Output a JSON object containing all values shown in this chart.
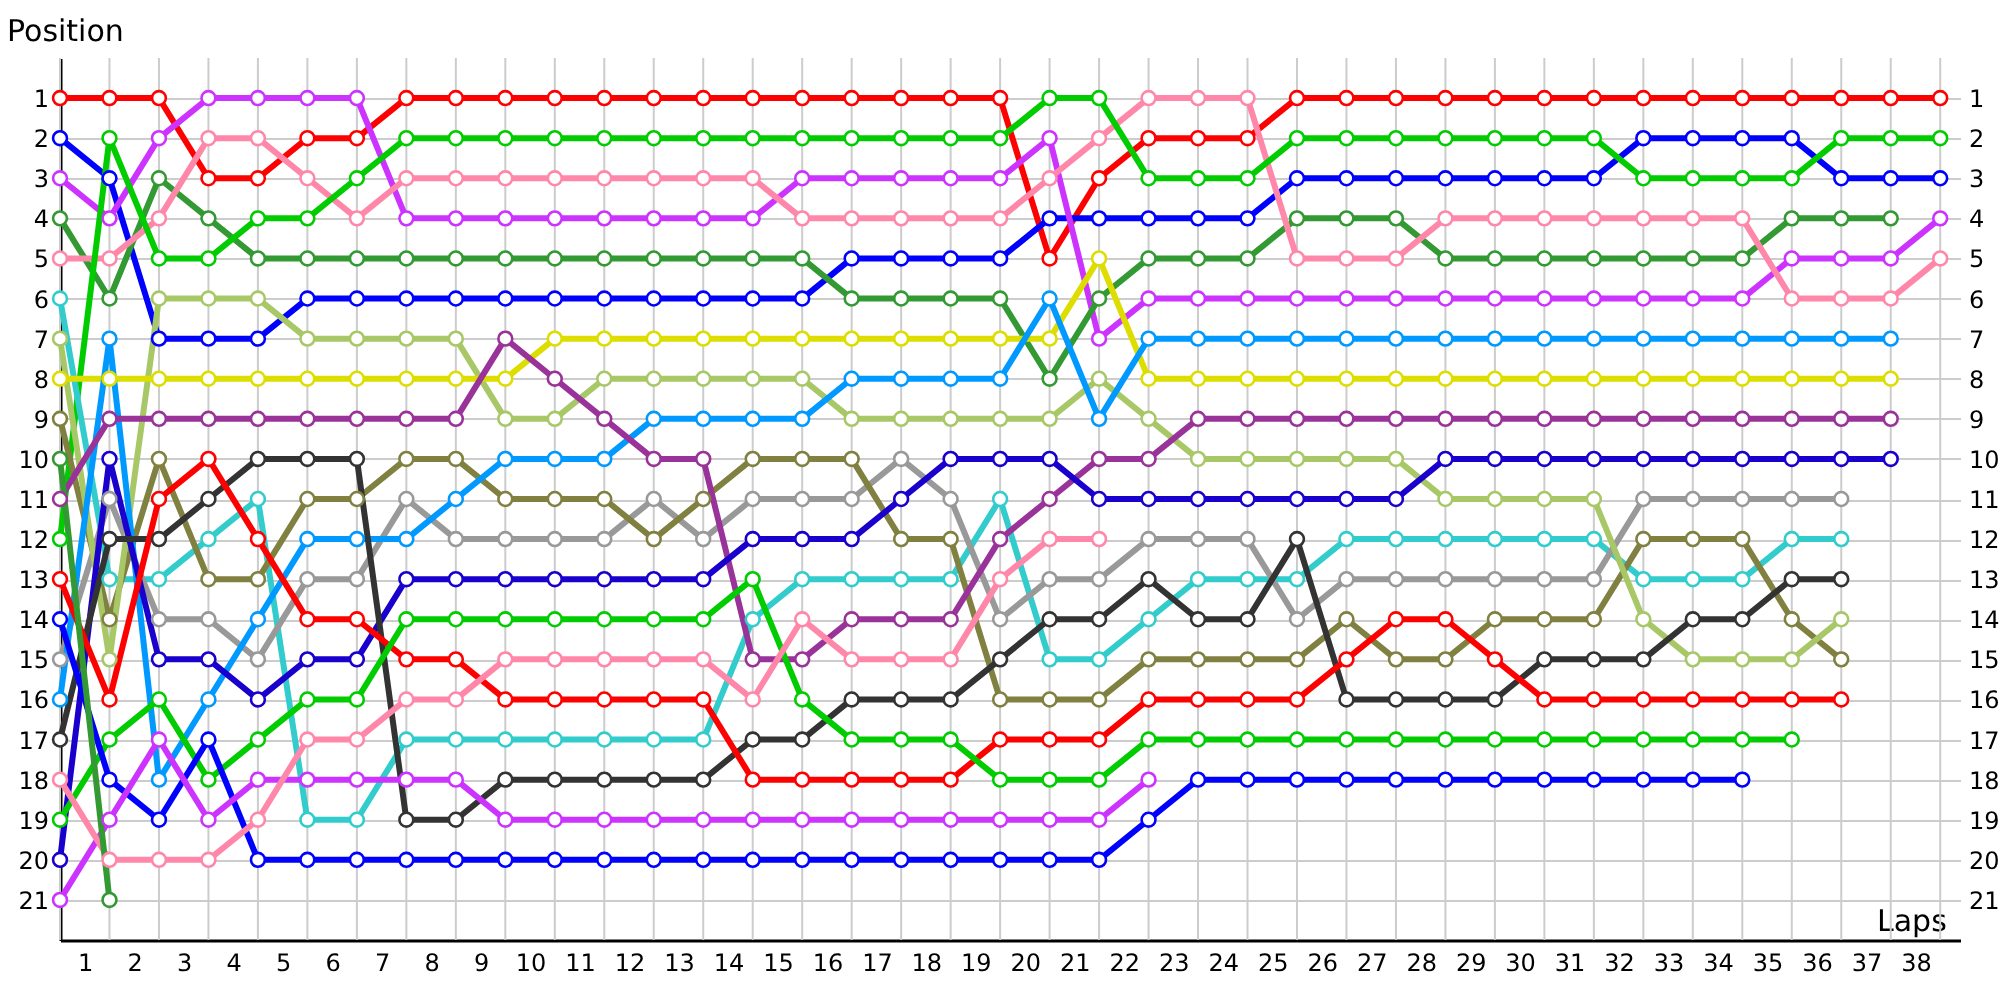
{
  "chart_data": {
    "type": "line",
    "xlabel": "Laps",
    "ylabel": "Position",
    "grid": true,
    "marker": "circle",
    "line_style": "solid",
    "x": [
      0,
      1,
      2,
      3,
      4,
      5,
      6,
      7,
      8,
      9,
      10,
      11,
      12,
      13,
      14,
      15,
      16,
      17,
      18,
      19,
      20,
      21,
      22,
      23,
      24,
      25,
      26,
      27,
      28,
      29,
      30,
      31,
      32,
      33,
      34,
      35,
      36,
      37,
      38
    ],
    "xlim": [
      0,
      38.4
    ],
    "xticks": [
      {
        "value": 0,
        "label": null
      },
      {
        "value": 0.5,
        "label": "1"
      },
      {
        "value": 1,
        "label": null
      },
      {
        "value": 1.5,
        "label": "2"
      },
      {
        "value": 2,
        "label": null
      },
      {
        "value": 2.5,
        "label": "3"
      },
      {
        "value": 3,
        "label": null
      },
      {
        "value": 3.5,
        "label": "4"
      },
      {
        "value": 4,
        "label": null
      },
      {
        "value": 4.5,
        "label": "5"
      },
      {
        "value": 5,
        "label": null
      },
      {
        "value": 5.5,
        "label": "6"
      },
      {
        "value": 6,
        "label": null
      },
      {
        "value": 6.5,
        "label": "7"
      },
      {
        "value": 7,
        "label": null
      },
      {
        "value": 7.5,
        "label": "8"
      },
      {
        "value": 8,
        "label": null
      },
      {
        "value": 8.5,
        "label": "9"
      },
      {
        "value": 9,
        "label": null
      },
      {
        "value": 9.5,
        "label": "10"
      },
      {
        "value": 10,
        "label": null
      },
      {
        "value": 10.5,
        "label": "11"
      },
      {
        "value": 11,
        "label": null
      },
      {
        "value": 11.5,
        "label": "12"
      },
      {
        "value": 12,
        "label": null
      },
      {
        "value": 12.5,
        "label": "13"
      },
      {
        "value": 13,
        "label": null
      },
      {
        "value": 13.5,
        "label": "14"
      },
      {
        "value": 14,
        "label": null
      },
      {
        "value": 14.5,
        "label": "15"
      },
      {
        "value": 15,
        "label": null
      },
      {
        "value": 15.5,
        "label": "16"
      },
      {
        "value": 16,
        "label": null
      },
      {
        "value": 16.5,
        "label": "17"
      },
      {
        "value": 17,
        "label": null
      },
      {
        "value": 17.5,
        "label": "18"
      },
      {
        "value": 18,
        "label": null
      },
      {
        "value": 18.5,
        "label": "19"
      },
      {
        "value": 19,
        "label": null
      },
      {
        "value": 19.5,
        "label": "20"
      },
      {
        "value": 20,
        "label": null
      },
      {
        "value": 20.5,
        "label": "21"
      },
      {
        "value": 21,
        "label": null
      },
      {
        "value": 21.5,
        "label": "22"
      },
      {
        "value": 22,
        "label": null
      },
      {
        "value": 22.5,
        "label": "23"
      },
      {
        "value": 23,
        "label": null
      },
      {
        "value": 23.5,
        "label": "24"
      },
      {
        "value": 24,
        "label": null
      },
      {
        "value": 24.5,
        "label": "25"
      },
      {
        "value": 25,
        "label": null
      },
      {
        "value": 25.5,
        "label": "26"
      },
      {
        "value": 26,
        "label": null
      },
      {
        "value": 26.5,
        "label": "27"
      },
      {
        "value": 27,
        "label": null
      },
      {
        "value": 27.5,
        "label": "28"
      },
      {
        "value": 28,
        "label": null
      },
      {
        "value": 28.5,
        "label": "29"
      },
      {
        "value": 29,
        "label": null
      },
      {
        "value": 29.5,
        "label": "30"
      },
      {
        "value": 30,
        "label": null
      },
      {
        "value": 30.5,
        "label": "31"
      },
      {
        "value": 31,
        "label": null
      },
      {
        "value": 31.5,
        "label": "32"
      },
      {
        "value": 32,
        "label": null
      },
      {
        "value": 32.5,
        "label": "33"
      },
      {
        "value": 33,
        "label": null
      },
      {
        "value": 33.5,
        "label": "34"
      },
      {
        "value": 34,
        "label": null
      },
      {
        "value": 34.5,
        "label": "35"
      },
      {
        "value": 35,
        "label": null
      },
      {
        "value": 35.5,
        "label": "36"
      },
      {
        "value": 36,
        "label": null
      },
      {
        "value": 36.5,
        "label": "37"
      },
      {
        "value": 37,
        "label": null
      },
      {
        "value": 37.5,
        "label": "38"
      },
      {
        "value": 38,
        "label": null
      }
    ],
    "ylim": [
      22,
      0
    ],
    "yticks": [
      1,
      2,
      3,
      4,
      5,
      6,
      7,
      8,
      9,
      10,
      11,
      12,
      13,
      14,
      15,
      16,
      17,
      18,
      19,
      20,
      21
    ],
    "y2lim": [
      22,
      0
    ],
    "y2ticks": [
      1,
      2,
      3,
      4,
      5,
      6,
      7,
      8,
      9,
      10,
      11,
      12,
      13,
      14,
      15,
      16,
      17,
      18,
      19,
      20,
      21
    ],
    "series": [
      {
        "color": "#ff0000",
        "values": [
          1,
          1,
          1,
          3,
          3,
          2,
          2,
          1,
          1,
          1,
          1,
          1,
          1,
          1,
          1,
          1,
          1,
          1,
          1,
          1,
          5,
          3,
          2,
          2,
          2,
          1,
          1,
          1,
          1,
          1,
          1,
          1,
          1,
          1,
          1,
          1,
          1,
          1,
          1
        ]
      },
      {
        "color": "#0000ff",
        "values": [
          2,
          3,
          7,
          7,
          7,
          6,
          6,
          6,
          6,
          6,
          6,
          6,
          6,
          6,
          6,
          6,
          5,
          5,
          5,
          5,
          4,
          4,
          4,
          4,
          4,
          3,
          3,
          3,
          3,
          3,
          3,
          3,
          2,
          2,
          2,
          2,
          3,
          3,
          3
        ]
      },
      {
        "color": "#cc33ff",
        "values": [
          3,
          4,
          2,
          1,
          1,
          1,
          1,
          4,
          4,
          4,
          4,
          4,
          4,
          4,
          4,
          3,
          3,
          3,
          3,
          3,
          2,
          7,
          6,
          6,
          6,
          6,
          6,
          6,
          6,
          6,
          6,
          6,
          6,
          6,
          6,
          5,
          5,
          5,
          4
        ]
      },
      {
        "color": "#339933",
        "values": [
          4,
          6,
          3,
          4,
          5,
          5,
          5,
          5,
          5,
          5,
          5,
          5,
          5,
          5,
          5,
          5,
          6,
          6,
          6,
          6,
          8,
          6,
          5,
          5,
          5,
          4,
          4,
          4,
          5,
          5,
          5,
          5,
          5,
          5,
          5,
          4,
          4,
          4,
          null
        ]
      },
      {
        "color": "#ff88aa",
        "values": [
          5,
          5,
          4,
          2,
          2,
          3,
          4,
          3,
          3,
          3,
          3,
          3,
          3,
          3,
          3,
          4,
          4,
          4,
          4,
          4,
          3,
          2,
          1,
          1,
          1,
          5,
          5,
          5,
          4,
          4,
          4,
          4,
          4,
          4,
          4,
          6,
          6,
          6,
          5
        ]
      },
      {
        "color": "#00cc00",
        "values": [
          12,
          2,
          5,
          5,
          4,
          4,
          3,
          2,
          2,
          2,
          2,
          2,
          2,
          2,
          2,
          2,
          2,
          2,
          2,
          2,
          1,
          1,
          3,
          3,
          3,
          2,
          2,
          2,
          2,
          2,
          2,
          2,
          3,
          3,
          3,
          3,
          2,
          2,
          2
        ]
      },
      {
        "color": "#33cccc",
        "values": [
          6,
          13,
          13,
          12,
          11,
          19,
          19,
          17,
          17,
          17,
          17,
          17,
          17,
          17,
          14,
          13,
          13,
          13,
          13,
          11,
          15,
          15,
          14,
          13,
          13,
          13,
          12,
          12,
          12,
          12,
          12,
          12,
          13,
          13,
          13,
          12,
          12,
          null,
          null
        ]
      },
      {
        "color": "#999999",
        "values": [
          15,
          11,
          14,
          14,
          15,
          13,
          13,
          11,
          12,
          12,
          12,
          12,
          11,
          12,
          11,
          11,
          11,
          10,
          11,
          14,
          13,
          13,
          12,
          12,
          12,
          14,
          13,
          13,
          13,
          13,
          13,
          13,
          11,
          11,
          11,
          11,
          11,
          null,
          null
        ]
      },
      {
        "color": "#808040",
        "values": [
          9,
          14,
          10,
          13,
          13,
          11,
          11,
          10,
          10,
          11,
          11,
          11,
          12,
          11,
          10,
          10,
          10,
          12,
          12,
          16,
          16,
          16,
          15,
          15,
          15,
          15,
          14,
          15,
          15,
          14,
          14,
          14,
          12,
          12,
          12,
          14,
          15,
          null,
          null
        ]
      },
      {
        "color": "#a8c868",
        "values": [
          7,
          15,
          6,
          6,
          6,
          7,
          7,
          7,
          7,
          9,
          9,
          8,
          8,
          8,
          8,
          8,
          9,
          9,
          9,
          9,
          9,
          8,
          9,
          10,
          10,
          10,
          10,
          10,
          11,
          11,
          11,
          11,
          14,
          15,
          15,
          15,
          14,
          null,
          null
        ]
      },
      {
        "color": "#dddd00",
        "values": [
          8,
          8,
          8,
          8,
          8,
          8,
          8,
          8,
          8,
          8,
          7,
          7,
          7,
          7,
          7,
          7,
          7,
          7,
          7,
          7,
          7,
          5,
          8,
          8,
          8,
          8,
          8,
          8,
          8,
          8,
          8,
          8,
          8,
          8,
          8,
          8,
          8,
          8,
          null
        ]
      },
      {
        "color": "#0099ff",
        "values": [
          16,
          7,
          18,
          16,
          14,
          12,
          12,
          12,
          11,
          10,
          10,
          10,
          9,
          9,
          9,
          9,
          8,
          8,
          8,
          8,
          6,
          9,
          7,
          7,
          7,
          7,
          7,
          7,
          7,
          7,
          7,
          7,
          7,
          7,
          7,
          7,
          7,
          7,
          null
        ]
      },
      {
        "color": "#993399",
        "values": [
          11,
          9,
          9,
          9,
          9,
          9,
          9,
          9,
          9,
          7,
          8,
          9,
          10,
          10,
          15,
          15,
          14,
          14,
          14,
          12,
          11,
          10,
          10,
          9,
          9,
          9,
          9,
          9,
          9,
          9,
          9,
          9,
          9,
          9,
          9,
          9,
          9,
          9,
          null
        ]
      },
      {
        "color": "#1a00cc",
        "values": [
          20,
          10,
          15,
          15,
          16,
          15,
          15,
          13,
          13,
          13,
          13,
          13,
          13,
          13,
          12,
          12,
          12,
          11,
          10,
          10,
          10,
          11,
          11,
          11,
          11,
          11,
          11,
          11,
          10,
          10,
          10,
          10,
          10,
          10,
          10,
          10,
          10,
          10,
          null
        ]
      },
      {
        "color": "#333333",
        "values": [
          17,
          12,
          12,
          11,
          10,
          10,
          10,
          19,
          19,
          18,
          18,
          18,
          18,
          18,
          17,
          17,
          16,
          16,
          16,
          15,
          14,
          14,
          13,
          14,
          14,
          12,
          16,
          16,
          16,
          16,
          15,
          15,
          15,
          14,
          14,
          13,
          13,
          null,
          null
        ]
      },
      {
        "color": "#ff0000",
        "values": [
          13,
          16,
          11,
          10,
          12,
          14,
          14,
          15,
          15,
          16,
          16,
          16,
          16,
          16,
          18,
          18,
          18,
          18,
          18,
          17,
          17,
          17,
          16,
          16,
          16,
          16,
          15,
          14,
          14,
          15,
          16,
          16,
          16,
          16,
          16,
          16,
          16,
          null,
          null
        ]
      },
      {
        "color": "#00cc00",
        "values": [
          19,
          17,
          16,
          18,
          17,
          16,
          16,
          14,
          14,
          14,
          14,
          14,
          14,
          14,
          13,
          16,
          17,
          17,
          17,
          18,
          18,
          18,
          17,
          17,
          17,
          17,
          17,
          17,
          17,
          17,
          17,
          17,
          17,
          17,
          17,
          17,
          null,
          null,
          null
        ]
      },
      {
        "color": "#0000ff",
        "values": [
          14,
          18,
          19,
          17,
          20,
          20,
          20,
          20,
          20,
          20,
          20,
          20,
          20,
          20,
          20,
          20,
          20,
          20,
          20,
          20,
          20,
          20,
          19,
          18,
          18,
          18,
          18,
          18,
          18,
          18,
          18,
          18,
          18,
          18,
          18,
          null,
          null,
          null,
          null
        ]
      },
      {
        "color": "#cc33ff",
        "values": [
          21,
          19,
          17,
          19,
          18,
          18,
          18,
          18,
          18,
          19,
          19,
          19,
          19,
          19,
          19,
          19,
          19,
          19,
          19,
          19,
          19,
          19,
          18,
          null,
          null,
          null,
          null,
          null,
          null,
          null,
          null,
          null,
          null,
          null,
          null,
          null,
          null,
          null,
          null
        ]
      },
      {
        "color": "#ff88aa",
        "values": [
          18,
          20,
          20,
          20,
          19,
          17,
          17,
          16,
          16,
          15,
          15,
          15,
          15,
          15,
          16,
          14,
          15,
          15,
          15,
          13,
          12,
          12,
          null,
          null,
          null,
          null,
          null,
          null,
          null,
          null,
          null,
          null,
          null,
          null,
          null,
          null,
          null,
          null,
          null
        ]
      },
      {
        "color": "#339933",
        "values": [
          10,
          21,
          null,
          null,
          null,
          null,
          null,
          null,
          null,
          null,
          null,
          null,
          null,
          null,
          null,
          null,
          null,
          null,
          null,
          null,
          null,
          null,
          null,
          null,
          null,
          null,
          null,
          null,
          null,
          null,
          null,
          null,
          null,
          null,
          null,
          null,
          null,
          null,
          null
        ]
      }
    ]
  }
}
